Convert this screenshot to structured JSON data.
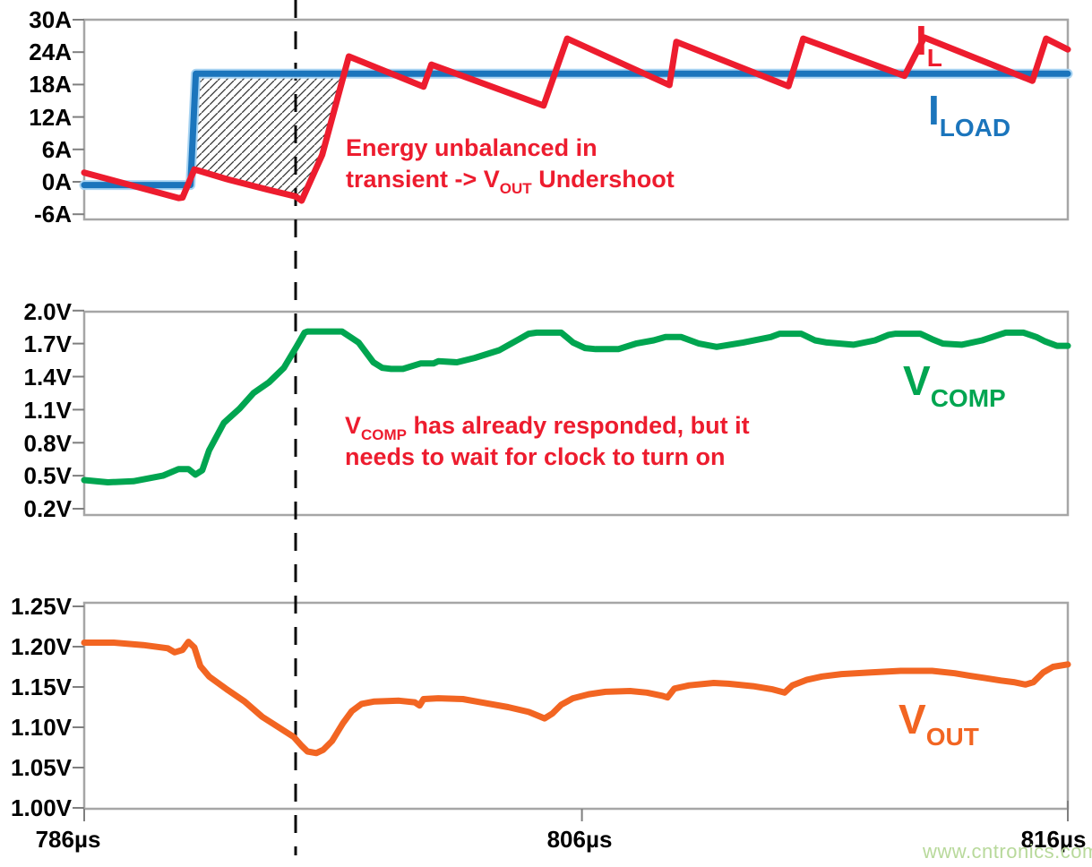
{
  "watermark": "www.cntronics.com",
  "colors": {
    "il_red": "#ED1C2E",
    "iload_blue": "#1B75BC",
    "iload_halo": "#A9D4F2",
    "vcomp_green": "#00A550",
    "vout_orange": "#F26522",
    "frame_gray": "#A6A6A6",
    "tick_gray": "#7F7F7F",
    "dash_black": "#0A0A0A",
    "hatch_black": "#333333",
    "annotation_red": "#ED1C2E",
    "watermark_green": "#B8D99B"
  },
  "xaxis": {
    "ticks": [
      {
        "label": "786µs",
        "f": 0.0
      },
      {
        "label": "806µs",
        "f": 0.506
      },
      {
        "label": "816µs",
        "f": 1.0
      }
    ],
    "dashed_cursor_f": 0.2149
  },
  "labels": {
    "il": {
      "main": "I",
      "sub": "L"
    },
    "iload": {
      "main": "I",
      "sub": "LOAD"
    },
    "vcomp": {
      "main": "V",
      "sub": "COMP"
    },
    "vout": {
      "main": "V",
      "sub": "OUT"
    }
  },
  "annotations": {
    "energy": {
      "line1": "Energy unbalanced in",
      "line2_pre": "transient -> V",
      "line2_sub": "OUT",
      "line2_post": " Undershoot"
    },
    "vcomp": {
      "line1_pre": "V",
      "line1_sub": "COMP",
      "line1_post": " has already responded, but it",
      "line2": "needs to wait for clock to turn on"
    }
  },
  "chart_data": [
    {
      "type": "line",
      "panel": "inductor-and-load-current",
      "unit": "A",
      "ylim": [
        -6.96,
        30.0
      ],
      "grid": false,
      "yticks": [
        {
          "v": 30,
          "label": "30A"
        },
        {
          "v": 24,
          "label": "24A"
        },
        {
          "v": 18,
          "label": "18A"
        },
        {
          "v": 12,
          "label": "12A"
        },
        {
          "v": 6,
          "label": "6A"
        },
        {
          "v": 0,
          "label": "0A"
        },
        {
          "v": -6,
          "label": "-6A"
        }
      ],
      "series": [
        {
          "name": "I_LOAD",
          "color": "iload_blue",
          "points": [
            [
              0,
              -0.6
            ],
            [
              0.108,
              -0.6
            ],
            [
              0.1135,
              20
            ],
            [
              1.0,
              20
            ]
          ]
        },
        {
          "name": "I_L",
          "color": "il_red",
          "points": [
            [
              0,
              1.7
            ],
            [
              0.096,
              -3.0
            ],
            [
              0.1,
              -2.9
            ],
            [
              0.112,
              2.3
            ],
            [
              0.145,
              0.5
            ],
            [
              0.188,
              -1.5
            ],
            [
              0.215,
              -2.7
            ],
            [
              0.221,
              -3.5
            ],
            [
              0.242,
              5.0
            ],
            [
              0.269,
              23.2
            ],
            [
              0.345,
              17.6
            ],
            [
              0.353,
              21.7
            ],
            [
              0.467,
              14.1
            ],
            [
              0.491,
              26.5
            ],
            [
              0.595,
              17.9
            ],
            [
              0.602,
              25.9
            ],
            [
              0.716,
              17.7
            ],
            [
              0.731,
              26.5
            ],
            [
              0.834,
              19.6
            ],
            [
              0.854,
              26.7
            ],
            [
              0.964,
              18.7
            ],
            [
              0.978,
              26.5
            ],
            [
              1.0,
              24.5
            ]
          ]
        }
      ],
      "hatch_polygon": [
        [
          0.1135,
          20
        ],
        [
          0.2643,
          20
        ],
        [
          0.242,
          5.0
        ],
        [
          0.221,
          -3.5
        ],
        [
          0.215,
          -2.7
        ],
        [
          0.188,
          -1.5
        ],
        [
          0.145,
          0.5
        ],
        [
          0.112,
          2.3
        ]
      ]
    },
    {
      "type": "line",
      "panel": "vcomp",
      "unit": "V",
      "ylim": [
        0.143,
        1.99
      ],
      "grid": false,
      "yticks": [
        {
          "v": 2.0,
          "label": "2.0V"
        },
        {
          "v": 1.7,
          "label": "1.7V"
        },
        {
          "v": 1.4,
          "label": "1.4V"
        },
        {
          "v": 1.1,
          "label": "1.1V"
        },
        {
          "v": 0.8,
          "label": "0.8V"
        },
        {
          "v": 0.5,
          "label": "0.5V"
        },
        {
          "v": 0.2,
          "label": "0.2V"
        }
      ],
      "series": [
        {
          "name": "V_COMP",
          "color": "vcomp_green",
          "points": [
            [
              0,
              0.46
            ],
            [
              0.024,
              0.44
            ],
            [
              0.05,
              0.45
            ],
            [
              0.08,
              0.5
            ],
            [
              0.096,
              0.56
            ],
            [
              0.106,
              0.56
            ],
            [
              0.113,
              0.51
            ],
            [
              0.12,
              0.55
            ],
            [
              0.127,
              0.73
            ],
            [
              0.142,
              0.98
            ],
            [
              0.158,
              1.11
            ],
            [
              0.172,
              1.25
            ],
            [
              0.188,
              1.35
            ],
            [
              0.203,
              1.48
            ],
            [
              0.215,
              1.66
            ],
            [
              0.224,
              1.8
            ],
            [
              0.227,
              1.81
            ],
            [
              0.262,
              1.81
            ],
            [
              0.279,
              1.71
            ],
            [
              0.294,
              1.53
            ],
            [
              0.303,
              1.48
            ],
            [
              0.312,
              1.47
            ],
            [
              0.324,
              1.47
            ],
            [
              0.342,
              1.52
            ],
            [
              0.355,
              1.52
            ],
            [
              0.36,
              1.54
            ],
            [
              0.379,
              1.53
            ],
            [
              0.397,
              1.57
            ],
            [
              0.422,
              1.64
            ],
            [
              0.44,
              1.73
            ],
            [
              0.452,
              1.79
            ],
            [
              0.46,
              1.8
            ],
            [
              0.485,
              1.8
            ],
            [
              0.497,
              1.71
            ],
            [
              0.509,
              1.66
            ],
            [
              0.52,
              1.65
            ],
            [
              0.543,
              1.65
            ],
            [
              0.561,
              1.7
            ],
            [
              0.579,
              1.73
            ],
            [
              0.591,
              1.76
            ],
            [
              0.607,
              1.76
            ],
            [
              0.625,
              1.7
            ],
            [
              0.643,
              1.67
            ],
            [
              0.67,
              1.71
            ],
            [
              0.698,
              1.76
            ],
            [
              0.707,
              1.79
            ],
            [
              0.729,
              1.79
            ],
            [
              0.743,
              1.73
            ],
            [
              0.755,
              1.71
            ],
            [
              0.782,
              1.69
            ],
            [
              0.804,
              1.73
            ],
            [
              0.818,
              1.78
            ],
            [
              0.825,
              1.79
            ],
            [
              0.85,
              1.79
            ],
            [
              0.862,
              1.74
            ],
            [
              0.873,
              1.7
            ],
            [
              0.892,
              1.69
            ],
            [
              0.913,
              1.73
            ],
            [
              0.93,
              1.78
            ],
            [
              0.937,
              1.8
            ],
            [
              0.955,
              1.8
            ],
            [
              0.968,
              1.76
            ],
            [
              0.977,
              1.72
            ],
            [
              0.989,
              1.68
            ],
            [
              1.0,
              1.68
            ]
          ]
        }
      ]
    },
    {
      "type": "line",
      "panel": "vout",
      "unit": "V",
      "ylim": [
        0.9989,
        1.2544
      ],
      "grid": false,
      "yticks": [
        {
          "v": 1.25,
          "label": "1.25V"
        },
        {
          "v": 1.2,
          "label": "1.20V"
        },
        {
          "v": 1.15,
          "label": "1.15V"
        },
        {
          "v": 1.1,
          "label": "1.10V"
        },
        {
          "v": 1.05,
          "label": "1.05V"
        },
        {
          "v": 1.0,
          "label": "1.00V"
        }
      ],
      "series": [
        {
          "name": "V_OUT",
          "color": "vout_orange",
          "points": [
            [
              0,
              1.205
            ],
            [
              0.03,
              1.205
            ],
            [
              0.06,
              1.202
            ],
            [
              0.085,
              1.198
            ],
            [
              0.092,
              1.193
            ],
            [
              0.1,
              1.196
            ],
            [
              0.106,
              1.206
            ],
            [
              0.112,
              1.199
            ],
            [
              0.118,
              1.176
            ],
            [
              0.127,
              1.163
            ],
            [
              0.145,
              1.147
            ],
            [
              0.163,
              1.132
            ],
            [
              0.181,
              1.113
            ],
            [
              0.199,
              1.099
            ],
            [
              0.213,
              1.088
            ],
            [
              0.221,
              1.077
            ],
            [
              0.227,
              1.07
            ],
            [
              0.236,
              1.068
            ],
            [
              0.243,
              1.072
            ],
            [
              0.252,
              1.083
            ],
            [
              0.263,
              1.105
            ],
            [
              0.272,
              1.12
            ],
            [
              0.282,
              1.129
            ],
            [
              0.295,
              1.132
            ],
            [
              0.32,
              1.133
            ],
            [
              0.336,
              1.131
            ],
            [
              0.341,
              1.127
            ],
            [
              0.345,
              1.135
            ],
            [
              0.36,
              1.136
            ],
            [
              0.385,
              1.135
            ],
            [
              0.403,
              1.131
            ],
            [
              0.431,
              1.125
            ],
            [
              0.452,
              1.119
            ],
            [
              0.462,
              1.114
            ],
            [
              0.468,
              1.111
            ],
            [
              0.476,
              1.117
            ],
            [
              0.485,
              1.128
            ],
            [
              0.497,
              1.136
            ],
            [
              0.513,
              1.141
            ],
            [
              0.53,
              1.144
            ],
            [
              0.555,
              1.145
            ],
            [
              0.572,
              1.143
            ],
            [
              0.588,
              1.139
            ],
            [
              0.593,
              1.137
            ],
            [
              0.6,
              1.148
            ],
            [
              0.615,
              1.152
            ],
            [
              0.64,
              1.155
            ],
            [
              0.655,
              1.154
            ],
            [
              0.68,
              1.151
            ],
            [
              0.7,
              1.147
            ],
            [
              0.712,
              1.143
            ],
            [
              0.72,
              1.152
            ],
            [
              0.735,
              1.159
            ],
            [
              0.75,
              1.163
            ],
            [
              0.77,
              1.166
            ],
            [
              0.8,
              1.168
            ],
            [
              0.83,
              1.17
            ],
            [
              0.862,
              1.17
            ],
            [
              0.885,
              1.167
            ],
            [
              0.9,
              1.164
            ],
            [
              0.916,
              1.161
            ],
            [
              0.932,
              1.158
            ],
            [
              0.945,
              1.156
            ],
            [
              0.957,
              1.153
            ],
            [
              0.965,
              1.156
            ],
            [
              0.975,
              1.168
            ],
            [
              0.985,
              1.175
            ],
            [
              1.0,
              1.178
            ]
          ]
        }
      ]
    }
  ]
}
